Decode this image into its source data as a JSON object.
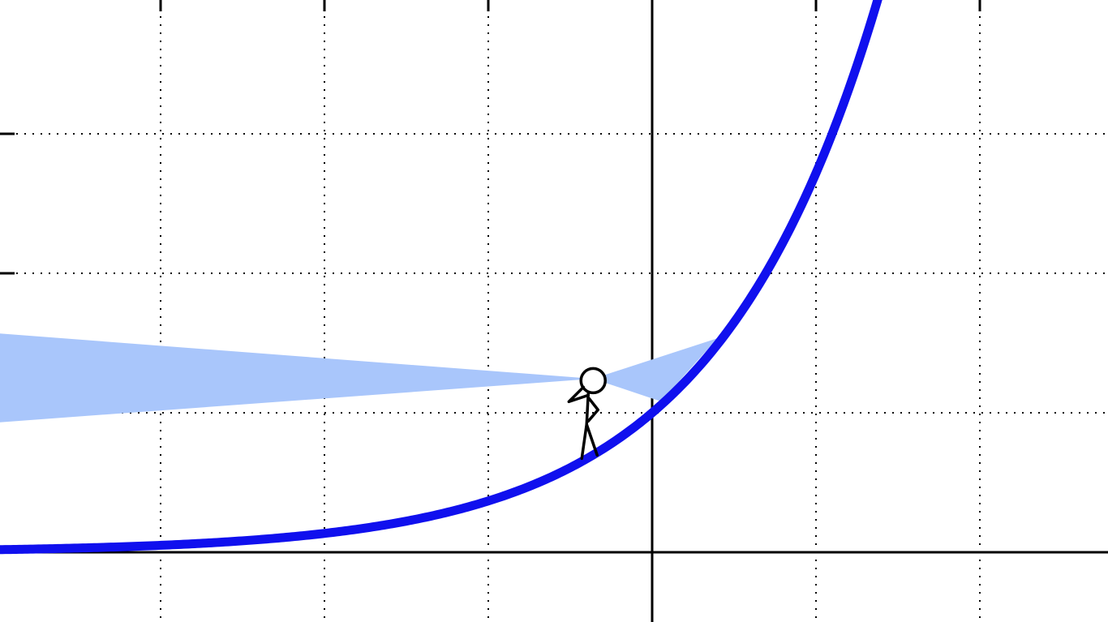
{
  "chart_data": {
    "type": "line",
    "function": "e^x",
    "xlim": [
      -4,
      2.8
    ],
    "ylim": [
      -0.5,
      4.7
    ],
    "grid": true,
    "grid_style": "dotted",
    "series": [
      {
        "color": "#1010ee",
        "x_from": -4,
        "x_to": 2.8
      }
    ],
    "observer": {
      "x": -0.38,
      "y": 1.0,
      "color": "#000000"
    },
    "sight_cones": {
      "color": "#a9c6fb",
      "backward": {
        "toward": "left",
        "x_edge": -4
      },
      "forward": {
        "toward": "right",
        "x_edge": 0.4
      }
    }
  }
}
